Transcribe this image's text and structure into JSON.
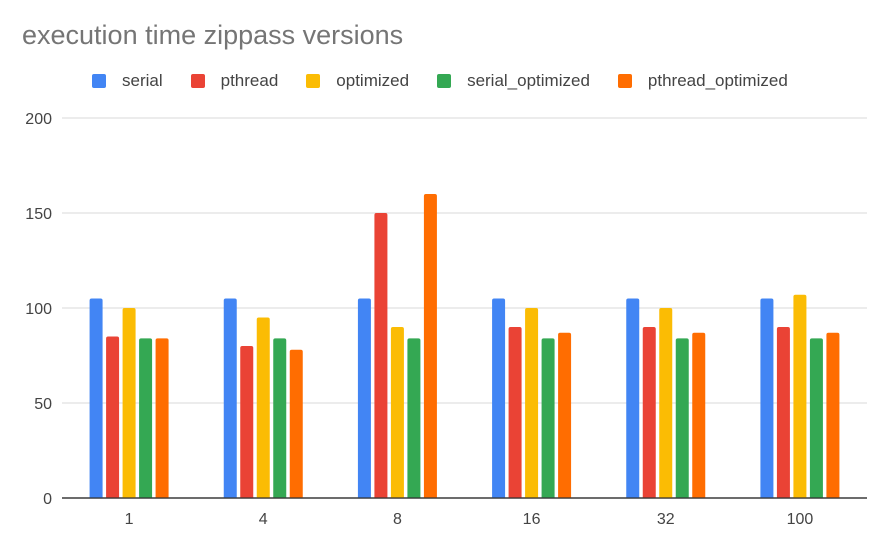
{
  "chart_data": {
    "type": "bar",
    "title": "execution time zippass versions",
    "xlabel": "",
    "ylabel": "",
    "categories": [
      "1",
      "4",
      "8",
      "16",
      "32",
      "100"
    ],
    "ylim": [
      0,
      200
    ],
    "yticks": [
      0,
      50,
      100,
      150,
      200
    ],
    "grid": true,
    "legend_position": "top",
    "series": [
      {
        "name": "serial",
        "color": "#4285F4",
        "values": [
          105,
          105,
          105,
          105,
          105,
          105
        ]
      },
      {
        "name": "pthread",
        "color": "#EA4335",
        "values": [
          85,
          80,
          150,
          90,
          90,
          90
        ]
      },
      {
        "name": "optimized",
        "color": "#FBBC04",
        "values": [
          100,
          95,
          90,
          100,
          100,
          107
        ]
      },
      {
        "name": "serial_optimized",
        "color": "#34A853",
        "values": [
          84,
          84,
          84,
          84,
          84,
          84
        ]
      },
      {
        "name": "pthread_optimized",
        "color": "#FF6D01",
        "values": [
          84,
          78,
          160,
          87,
          87,
          87
        ]
      }
    ]
  }
}
